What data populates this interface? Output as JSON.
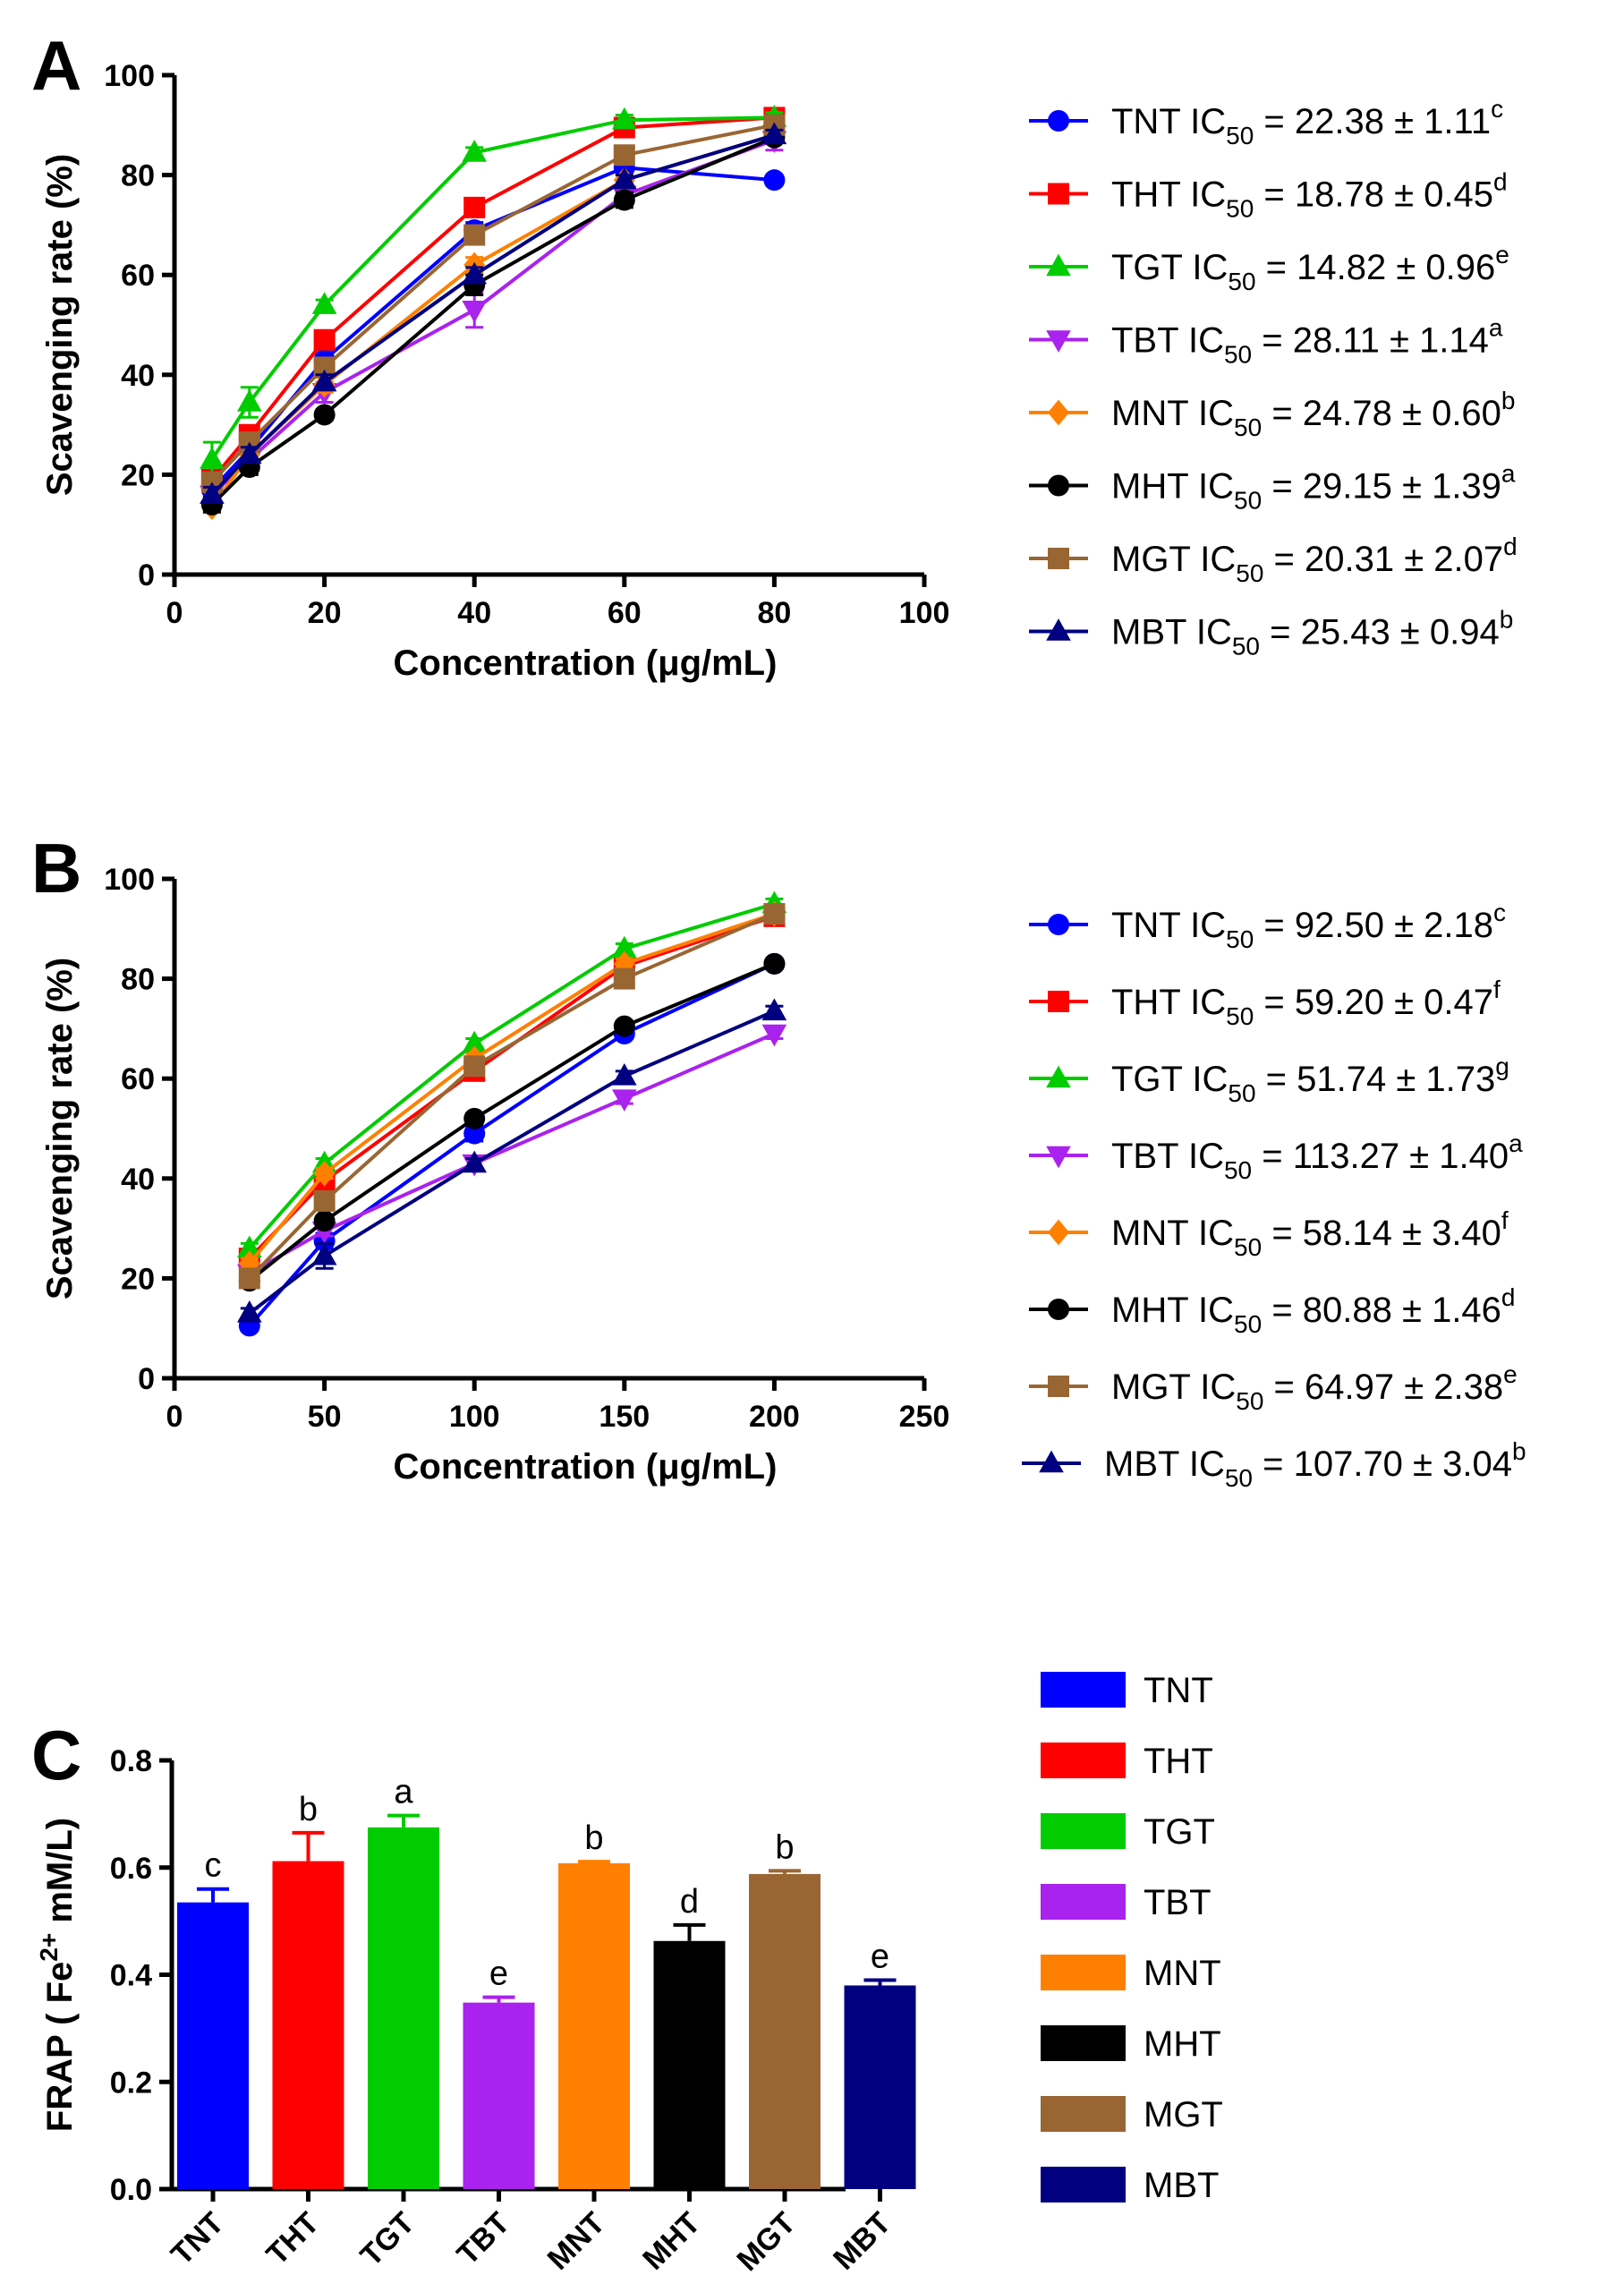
{
  "chart_data": [
    {
      "panel": "A",
      "type": "line",
      "xlabel": "Concentration (μg/mL)",
      "ylabel": "Scavenging rate (%)",
      "xlim": [
        0,
        100
      ],
      "ylim": [
        0,
        100
      ],
      "xticks": [
        0,
        20,
        40,
        60,
        80,
        100
      ],
      "yticks": [
        0,
        20,
        40,
        60,
        80,
        100
      ],
      "x": [
        5,
        10,
        20,
        40,
        60,
        80
      ],
      "legend_position": "right",
      "series": [
        {
          "name": "TNT",
          "ic50_label": "IC",
          "ic50_sub": "50",
          "ic50_value": " = 22.38 ± 1.11",
          "sig": "c",
          "color": "#0000FF",
          "marker": "circle",
          "values": [
            17,
            25,
            43,
            69,
            81.5,
            79
          ],
          "err": [
            1.5,
            1.5,
            2,
            1.5,
            1,
            1
          ]
        },
        {
          "name": "THT",
          "ic50_label": "IC",
          "ic50_sub": "50",
          "ic50_value": " = 18.78 ± 0.45",
          "sig": "d",
          "color": "#FF0000",
          "marker": "square",
          "values": [
            19,
            28,
            47,
            73.5,
            89.5,
            91.5
          ],
          "err": [
            1.5,
            1.5,
            1.5,
            1.5,
            1,
            1
          ]
        },
        {
          "name": "TGT",
          "ic50_label": "IC",
          "ic50_sub": "50",
          "ic50_value": " = 14.82 ± 0.96",
          "sig": "e",
          "color": "#00CC00",
          "marker": "triangle-up",
          "values": [
            23,
            34.5,
            54,
            84.5,
            91,
            91.5
          ],
          "err": [
            3.5,
            3,
            1,
            1,
            1,
            1
          ]
        },
        {
          "name": "TBT",
          "ic50_label": "IC",
          "ic50_sub": "50",
          "ic50_value": " = 28.11 ± 1.14",
          "sig": "a",
          "color": "#AA22EE",
          "marker": "triangle-down",
          "values": [
            16,
            23,
            36.5,
            53,
            76,
            87
          ],
          "err": [
            1.5,
            1.5,
            2,
            3.5,
            1.5,
            2
          ]
        },
        {
          "name": "MNT",
          "ic50_label": "IC",
          "ic50_sub": "50",
          "ic50_value": " = 24.78 ± 0.60",
          "sig": "b",
          "color": "#FF8000",
          "marker": "diamond",
          "values": [
            13.5,
            24,
            38,
            62,
            79,
            88
          ],
          "err": [
            1,
            1,
            1.5,
            1.5,
            1,
            1
          ]
        },
        {
          "name": "MHT",
          "ic50_label": "IC",
          "ic50_sub": "50",
          "ic50_value": " = 29.15 ± 1.39",
          "sig": "a",
          "color": "#000000",
          "marker": "circle",
          "values": [
            14,
            21.5,
            32,
            58,
            75,
            87.5
          ],
          "err": [
            1.5,
            1.5,
            1,
            2,
            1.5,
            1
          ]
        },
        {
          "name": "MGT",
          "ic50_label": "IC",
          "ic50_sub": "50",
          "ic50_value": " = 20.31 ± 2.07",
          "sig": "d",
          "color": "#996633",
          "marker": "square",
          "values": [
            18.5,
            26.5,
            41.5,
            68,
            84,
            90
          ],
          "err": [
            1.5,
            1.5,
            1.5,
            1.5,
            1,
            1
          ]
        },
        {
          "name": "MBT",
          "ic50_label": "IC",
          "ic50_sub": "50",
          "ic50_value": " = 25.43 ± 0.94",
          "sig": "b",
          "color": "#000080",
          "marker": "triangle-up",
          "values": [
            16,
            24,
            38.5,
            60,
            79,
            88
          ],
          "err": [
            1.5,
            1.5,
            1.5,
            1.5,
            1,
            1
          ]
        }
      ]
    },
    {
      "panel": "B",
      "type": "line",
      "xlabel": "Concentration (μg/mL)",
      "ylabel": "Scavenging rate (%)",
      "xlim": [
        0,
        250
      ],
      "ylim": [
        0,
        100
      ],
      "xticks": [
        0,
        50,
        100,
        150,
        200,
        250
      ],
      "yticks": [
        0,
        20,
        40,
        60,
        80,
        100
      ],
      "x": [
        25,
        50,
        100,
        150,
        200
      ],
      "legend_position": "right",
      "series": [
        {
          "name": "TNT",
          "ic50_label": "IC",
          "ic50_sub": "50",
          "ic50_value": " = 92.50 ± 2.18",
          "sig": "c",
          "color": "#0000FF",
          "marker": "circle",
          "values": [
            10.5,
            27.5,
            49,
            69,
            83
          ],
          "err": [
            1,
            1.5,
            1.5,
            1,
            1
          ]
        },
        {
          "name": "THT",
          "ic50_label": "IC",
          "ic50_sub": "50",
          "ic50_value": " = 59.20 ± 0.47",
          "sig": "f",
          "color": "#FF0000",
          "marker": "square",
          "values": [
            24,
            39.5,
            61.5,
            82.5,
            92.5
          ],
          "err": [
            1,
            1,
            1,
            1,
            1
          ]
        },
        {
          "name": "TGT",
          "ic50_label": "IC",
          "ic50_sub": "50",
          "ic50_value": " = 51.74 ± 1.73",
          "sig": "g",
          "color": "#00CC00",
          "marker": "triangle-up",
          "values": [
            26,
            43,
            67,
            86,
            95
          ],
          "err": [
            1,
            1,
            1,
            1,
            1
          ]
        },
        {
          "name": "TBT",
          "ic50_label": "IC",
          "ic50_sub": "50",
          "ic50_value": " = 113.27 ± 1.40",
          "sig": "a",
          "color": "#AA22EE",
          "marker": "triangle-down",
          "values": [
            21,
            29.5,
            43,
            56,
            69
          ],
          "err": [
            1,
            1,
            1,
            1,
            1
          ]
        },
        {
          "name": "MNT",
          "ic50_label": "IC",
          "ic50_sub": "50",
          "ic50_value": " = 58.14 ± 3.40",
          "sig": "f",
          "color": "#FF8000",
          "marker": "diamond",
          "values": [
            23,
            41,
            64,
            83,
            93
          ],
          "err": [
            1,
            1,
            1,
            1,
            1
          ]
        },
        {
          "name": "MHT",
          "ic50_label": "IC",
          "ic50_sub": "50",
          "ic50_value": " = 80.88 ± 1.46",
          "sig": "d",
          "color": "#000000",
          "marker": "circle",
          "values": [
            19.5,
            31.5,
            52,
            70.5,
            83
          ],
          "err": [
            1,
            1,
            1,
            1,
            1
          ]
        },
        {
          "name": "MGT",
          "ic50_label": "IC",
          "ic50_sub": "50",
          "ic50_value": " = 64.97 ± 2.38",
          "sig": "e",
          "color": "#996633",
          "marker": "square",
          "values": [
            20,
            35.5,
            62.5,
            80,
            93
          ],
          "err": [
            1,
            1,
            1,
            1,
            1
          ]
        },
        {
          "name": "MBT",
          "ic50_label": "IC",
          "ic50_sub": "50",
          "ic50_value": " = 107.70 ± 3.04",
          "sig": "b",
          "color": "#000080",
          "marker": "triangle-up",
          "values": [
            13,
            24.5,
            43,
            60.5,
            73.5
          ],
          "err": [
            1,
            2.5,
            1,
            1,
            1
          ]
        }
      ]
    },
    {
      "panel": "C",
      "type": "bar",
      "ylabel_main": "FRAP ( Fe",
      "ylabel_sup": "2+",
      "ylabel_end": " mM/L)",
      "ylim": [
        0,
        0.8
      ],
      "yticks": [
        "0.0",
        "0.2",
        "0.4",
        "0.6",
        "0.8"
      ],
      "categories": [
        "TNT",
        "THT",
        "TGT",
        "TBT",
        "MNT",
        "MHT",
        "MGT",
        "MBT"
      ],
      "values": [
        0.535,
        0.612,
        0.675,
        0.348,
        0.608,
        0.463,
        0.588,
        0.38
      ],
      "errors": [
        0.025,
        0.053,
        0.022,
        0.01,
        0.003,
        0.03,
        0.006,
        0.01
      ],
      "significance": [
        "c",
        "b",
        "a",
        "e",
        "b",
        "d",
        "b",
        "e"
      ],
      "colors": [
        "#0000FF",
        "#FF0000",
        "#00CC00",
        "#AA22EE",
        "#FF8000",
        "#000000",
        "#996633",
        "#000080"
      ],
      "legend": [
        "TNT",
        "THT",
        "TGT",
        "TBT",
        "MNT",
        "MHT",
        "MGT",
        "MBT"
      ],
      "legend_position": "right"
    }
  ]
}
